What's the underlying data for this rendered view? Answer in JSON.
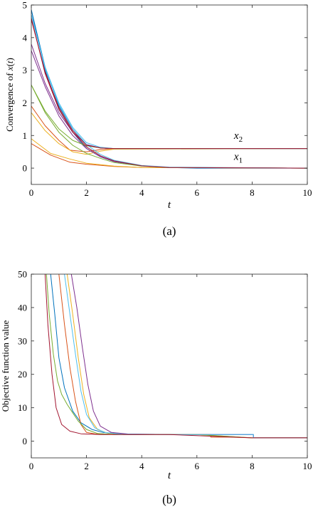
{
  "chart_data": [
    {
      "type": "line",
      "caption": "(a)",
      "xlabel": "t",
      "ylabel": "Convergence of x(t)",
      "xlim": [
        0,
        10
      ],
      "ylim": [
        -0.5,
        5
      ],
      "xticks": [
        0,
        2,
        4,
        6,
        8,
        10
      ],
      "yticks": [
        0,
        1,
        2,
        3,
        4,
        5
      ],
      "grid": false,
      "annotations": [
        {
          "text": "x2",
          "base": "x",
          "sub": "2",
          "x": 7.5,
          "y": 0.9
        },
        {
          "text": "x1",
          "base": "x",
          "sub": "1",
          "x": 7.5,
          "y": 0.25
        }
      ],
      "series": [
        {
          "color": "#0072BD",
          "x1": [
            [
              0,
              4.85
            ],
            [
              0.5,
              3.0
            ],
            [
              1,
              1.8
            ],
            [
              1.5,
              1.1
            ],
            [
              2,
              0.6
            ],
            [
              2.5,
              0.35
            ],
            [
              3,
              0.2
            ],
            [
              4,
              0.07
            ],
            [
              5,
              0.02
            ],
            [
              6,
              0.0
            ],
            [
              10,
              0.0
            ]
          ],
          "x2": [
            [
              0,
              4.85
            ],
            [
              0.5,
              3.1
            ],
            [
              1,
              1.9
            ],
            [
              1.5,
              1.2
            ],
            [
              2,
              0.72
            ],
            [
              2.5,
              0.62
            ],
            [
              3,
              0.6
            ],
            [
              10,
              0.6
            ]
          ]
        },
        {
          "color": "#D95319",
          "x1": [
            [
              0,
              0.75
            ],
            [
              0.7,
              0.4
            ],
            [
              1.4,
              0.18
            ],
            [
              2,
              0.12
            ],
            [
              3,
              0.05
            ],
            [
              4,
              0.02
            ],
            [
              10,
              0.0
            ]
          ],
          "x2": [
            [
              0,
              1.9
            ],
            [
              0.5,
              1.3
            ],
            [
              1,
              0.85
            ],
            [
              1.4,
              0.55
            ],
            [
              2,
              0.5
            ],
            [
              2.5,
              0.57
            ],
            [
              3,
              0.6
            ],
            [
              10,
              0.6
            ]
          ]
        },
        {
          "color": "#EDB120",
          "x1": [
            [
              0,
              0.9
            ],
            [
              0.7,
              0.45
            ],
            [
              1.4,
              0.28
            ],
            [
              2,
              0.15
            ],
            [
              3,
              0.06
            ],
            [
              4,
              0.02
            ],
            [
              10,
              0.0
            ]
          ],
          "x2": [
            [
              0,
              1.7
            ],
            [
              0.5,
              1.15
            ],
            [
              1,
              0.75
            ],
            [
              1.5,
              0.5
            ],
            [
              2,
              0.42
            ],
            [
              2.5,
              0.52
            ],
            [
              3,
              0.58
            ],
            [
              10,
              0.6
            ]
          ]
        },
        {
          "color": "#7E2F8E",
          "x1": [
            [
              0,
              3.6
            ],
            [
              0.5,
              2.5
            ],
            [
              1,
              1.6
            ],
            [
              1.5,
              1.0
            ],
            [
              2,
              0.6
            ],
            [
              2.5,
              0.35
            ],
            [
              3,
              0.2
            ],
            [
              4,
              0.07
            ],
            [
              5,
              0.02
            ],
            [
              10,
              0.0
            ]
          ],
          "x2": [
            [
              0,
              3.8
            ],
            [
              0.5,
              2.6
            ],
            [
              1,
              1.7
            ],
            [
              1.5,
              1.1
            ],
            [
              2,
              0.72
            ],
            [
              2.5,
              0.62
            ],
            [
              3,
              0.6
            ],
            [
              10,
              0.6
            ]
          ]
        },
        {
          "color": "#77AC30",
          "x1": [
            [
              0,
              2.55
            ],
            [
              0.5,
              1.7
            ],
            [
              1,
              1.1
            ],
            [
              1.5,
              0.7
            ],
            [
              2,
              0.45
            ],
            [
              2.5,
              0.3
            ],
            [
              3,
              0.17
            ],
            [
              4,
              0.06
            ],
            [
              5,
              0.02
            ],
            [
              10,
              0.0
            ]
          ],
          "x2": [
            [
              0,
              2.55
            ],
            [
              0.5,
              1.75
            ],
            [
              1,
              1.2
            ],
            [
              1.5,
              0.85
            ],
            [
              2,
              0.68
            ],
            [
              2.5,
              0.62
            ],
            [
              3,
              0.6
            ],
            [
              10,
              0.6
            ]
          ]
        },
        {
          "color": "#4DBEEE",
          "x1": [
            [
              0,
              4.7
            ],
            [
              0.5,
              3.05
            ],
            [
              1,
              1.95
            ],
            [
              1.5,
              1.2
            ],
            [
              2,
              0.72
            ],
            [
              2.5,
              0.42
            ],
            [
              3,
              0.24
            ],
            [
              4,
              0.08
            ],
            [
              5,
              0.03
            ],
            [
              10,
              0.0
            ]
          ],
          "x2": [
            [
              0,
              4.7
            ],
            [
              0.5,
              3.1
            ],
            [
              1,
              2.0
            ],
            [
              1.5,
              1.25
            ],
            [
              2,
              0.78
            ],
            [
              2.5,
              0.64
            ],
            [
              3,
              0.6
            ],
            [
              10,
              0.6
            ]
          ]
        },
        {
          "color": "#A2142F",
          "x1": [
            [
              0,
              4.6
            ],
            [
              0.5,
              2.9
            ],
            [
              1,
              1.8
            ],
            [
              1.5,
              1.1
            ],
            [
              2,
              0.65
            ],
            [
              2.5,
              0.38
            ],
            [
              3,
              0.22
            ],
            [
              4,
              0.07
            ],
            [
              5,
              0.02
            ],
            [
              10,
              0.0
            ]
          ],
          "x2": [
            [
              0,
              4.55
            ],
            [
              0.5,
              2.95
            ],
            [
              1,
              1.85
            ],
            [
              1.5,
              1.15
            ],
            [
              2,
              0.7
            ],
            [
              2.5,
              0.62
            ],
            [
              3,
              0.6
            ],
            [
              10,
              0.6
            ]
          ]
        }
      ]
    },
    {
      "type": "line",
      "caption": "(b)",
      "xlabel": "t",
      "ylabel": "Objective function value",
      "xlim": [
        0,
        10
      ],
      "ylim": [
        -5,
        50
      ],
      "xticks": [
        0,
        2,
        4,
        6,
        8,
        10
      ],
      "yticks": [
        0,
        10,
        20,
        30,
        40,
        50
      ],
      "grid": false,
      "series": [
        {
          "color": "#0072BD",
          "points": [
            [
              0.7,
              50
            ],
            [
              0.85,
              38
            ],
            [
              1.0,
              25
            ],
            [
              1.2,
              16
            ],
            [
              1.5,
              9
            ],
            [
              1.8,
              5.5
            ],
            [
              2.2,
              3.5
            ],
            [
              2.6,
              2.6
            ],
            [
              3.2,
              2.2
            ],
            [
              4,
              2.05
            ],
            [
              6,
              2.0
            ],
            [
              8.05,
              2.0
            ],
            [
              8.05,
              1.0
            ],
            [
              10,
              1.0
            ]
          ]
        },
        {
          "color": "#D95319",
          "points": [
            [
              1.0,
              50
            ],
            [
              1.2,
              35
            ],
            [
              1.4,
              22
            ],
            [
              1.6,
              12
            ],
            [
              1.8,
              5
            ],
            [
              2.0,
              2.6
            ],
            [
              2.3,
              2.2
            ],
            [
              3,
              2.1
            ],
            [
              6.5,
              2.0
            ],
            [
              6.5,
              1.2
            ],
            [
              7.2,
              1.2
            ],
            [
              8.0,
              1.0
            ],
            [
              10,
              1.0
            ]
          ]
        },
        {
          "color": "#EDB120",
          "points": [
            [
              1.3,
              50
            ],
            [
              1.5,
              38
            ],
            [
              1.7,
              25
            ],
            [
              1.9,
              14
            ],
            [
              2.1,
              7
            ],
            [
              2.4,
              3.5
            ],
            [
              2.8,
              2.3
            ],
            [
              3.5,
              2.05
            ],
            [
              6,
              2.0
            ],
            [
              8,
              1.0
            ],
            [
              10,
              1.0
            ]
          ]
        },
        {
          "color": "#7E2F8E",
          "points": [
            [
              1.45,
              50
            ],
            [
              1.65,
              40
            ],
            [
              1.85,
              28
            ],
            [
              2.05,
              17
            ],
            [
              2.25,
              9
            ],
            [
              2.5,
              4.5
            ],
            [
              2.9,
              2.6
            ],
            [
              3.5,
              2.15
            ],
            [
              5,
              2.0
            ],
            [
              8.05,
              1.95
            ],
            [
              8.05,
              1.0
            ],
            [
              10,
              1.0
            ]
          ]
        },
        {
          "color": "#77AC30",
          "points": [
            [
              0.55,
              50
            ],
            [
              0.65,
              38
            ],
            [
              0.8,
              26
            ],
            [
              0.95,
              18
            ],
            [
              1.1,
              14
            ],
            [
              1.3,
              11
            ],
            [
              1.5,
              8.5
            ],
            [
              1.7,
              6
            ],
            [
              2.0,
              3.5
            ],
            [
              2.4,
              2.3
            ],
            [
              3,
              2.0
            ],
            [
              6,
              2.0
            ],
            [
              8,
              1.0
            ],
            [
              10,
              1.0
            ]
          ]
        },
        {
          "color": "#4DBEEE",
          "points": [
            [
              1.2,
              50
            ],
            [
              1.4,
              38
            ],
            [
              1.6,
              26
            ],
            [
              1.8,
              15
            ],
            [
              2.0,
              8
            ],
            [
              2.3,
              4
            ],
            [
              2.7,
              2.5
            ],
            [
              3.3,
              2.1
            ],
            [
              5,
              2.0
            ],
            [
              8.05,
              2.0
            ],
            [
              8.05,
              1.0
            ],
            [
              10,
              1.0
            ]
          ]
        },
        {
          "color": "#A2142F",
          "points": [
            [
              0.5,
              50
            ],
            [
              0.6,
              35
            ],
            [
              0.75,
              20
            ],
            [
              0.9,
              10
            ],
            [
              1.1,
              5
            ],
            [
              1.4,
              3
            ],
            [
              1.8,
              2.2
            ],
            [
              2.5,
              2.0
            ],
            [
              5,
              2.0
            ],
            [
              8,
              1.0
            ],
            [
              10,
              1.0
            ]
          ]
        }
      ]
    }
  ]
}
